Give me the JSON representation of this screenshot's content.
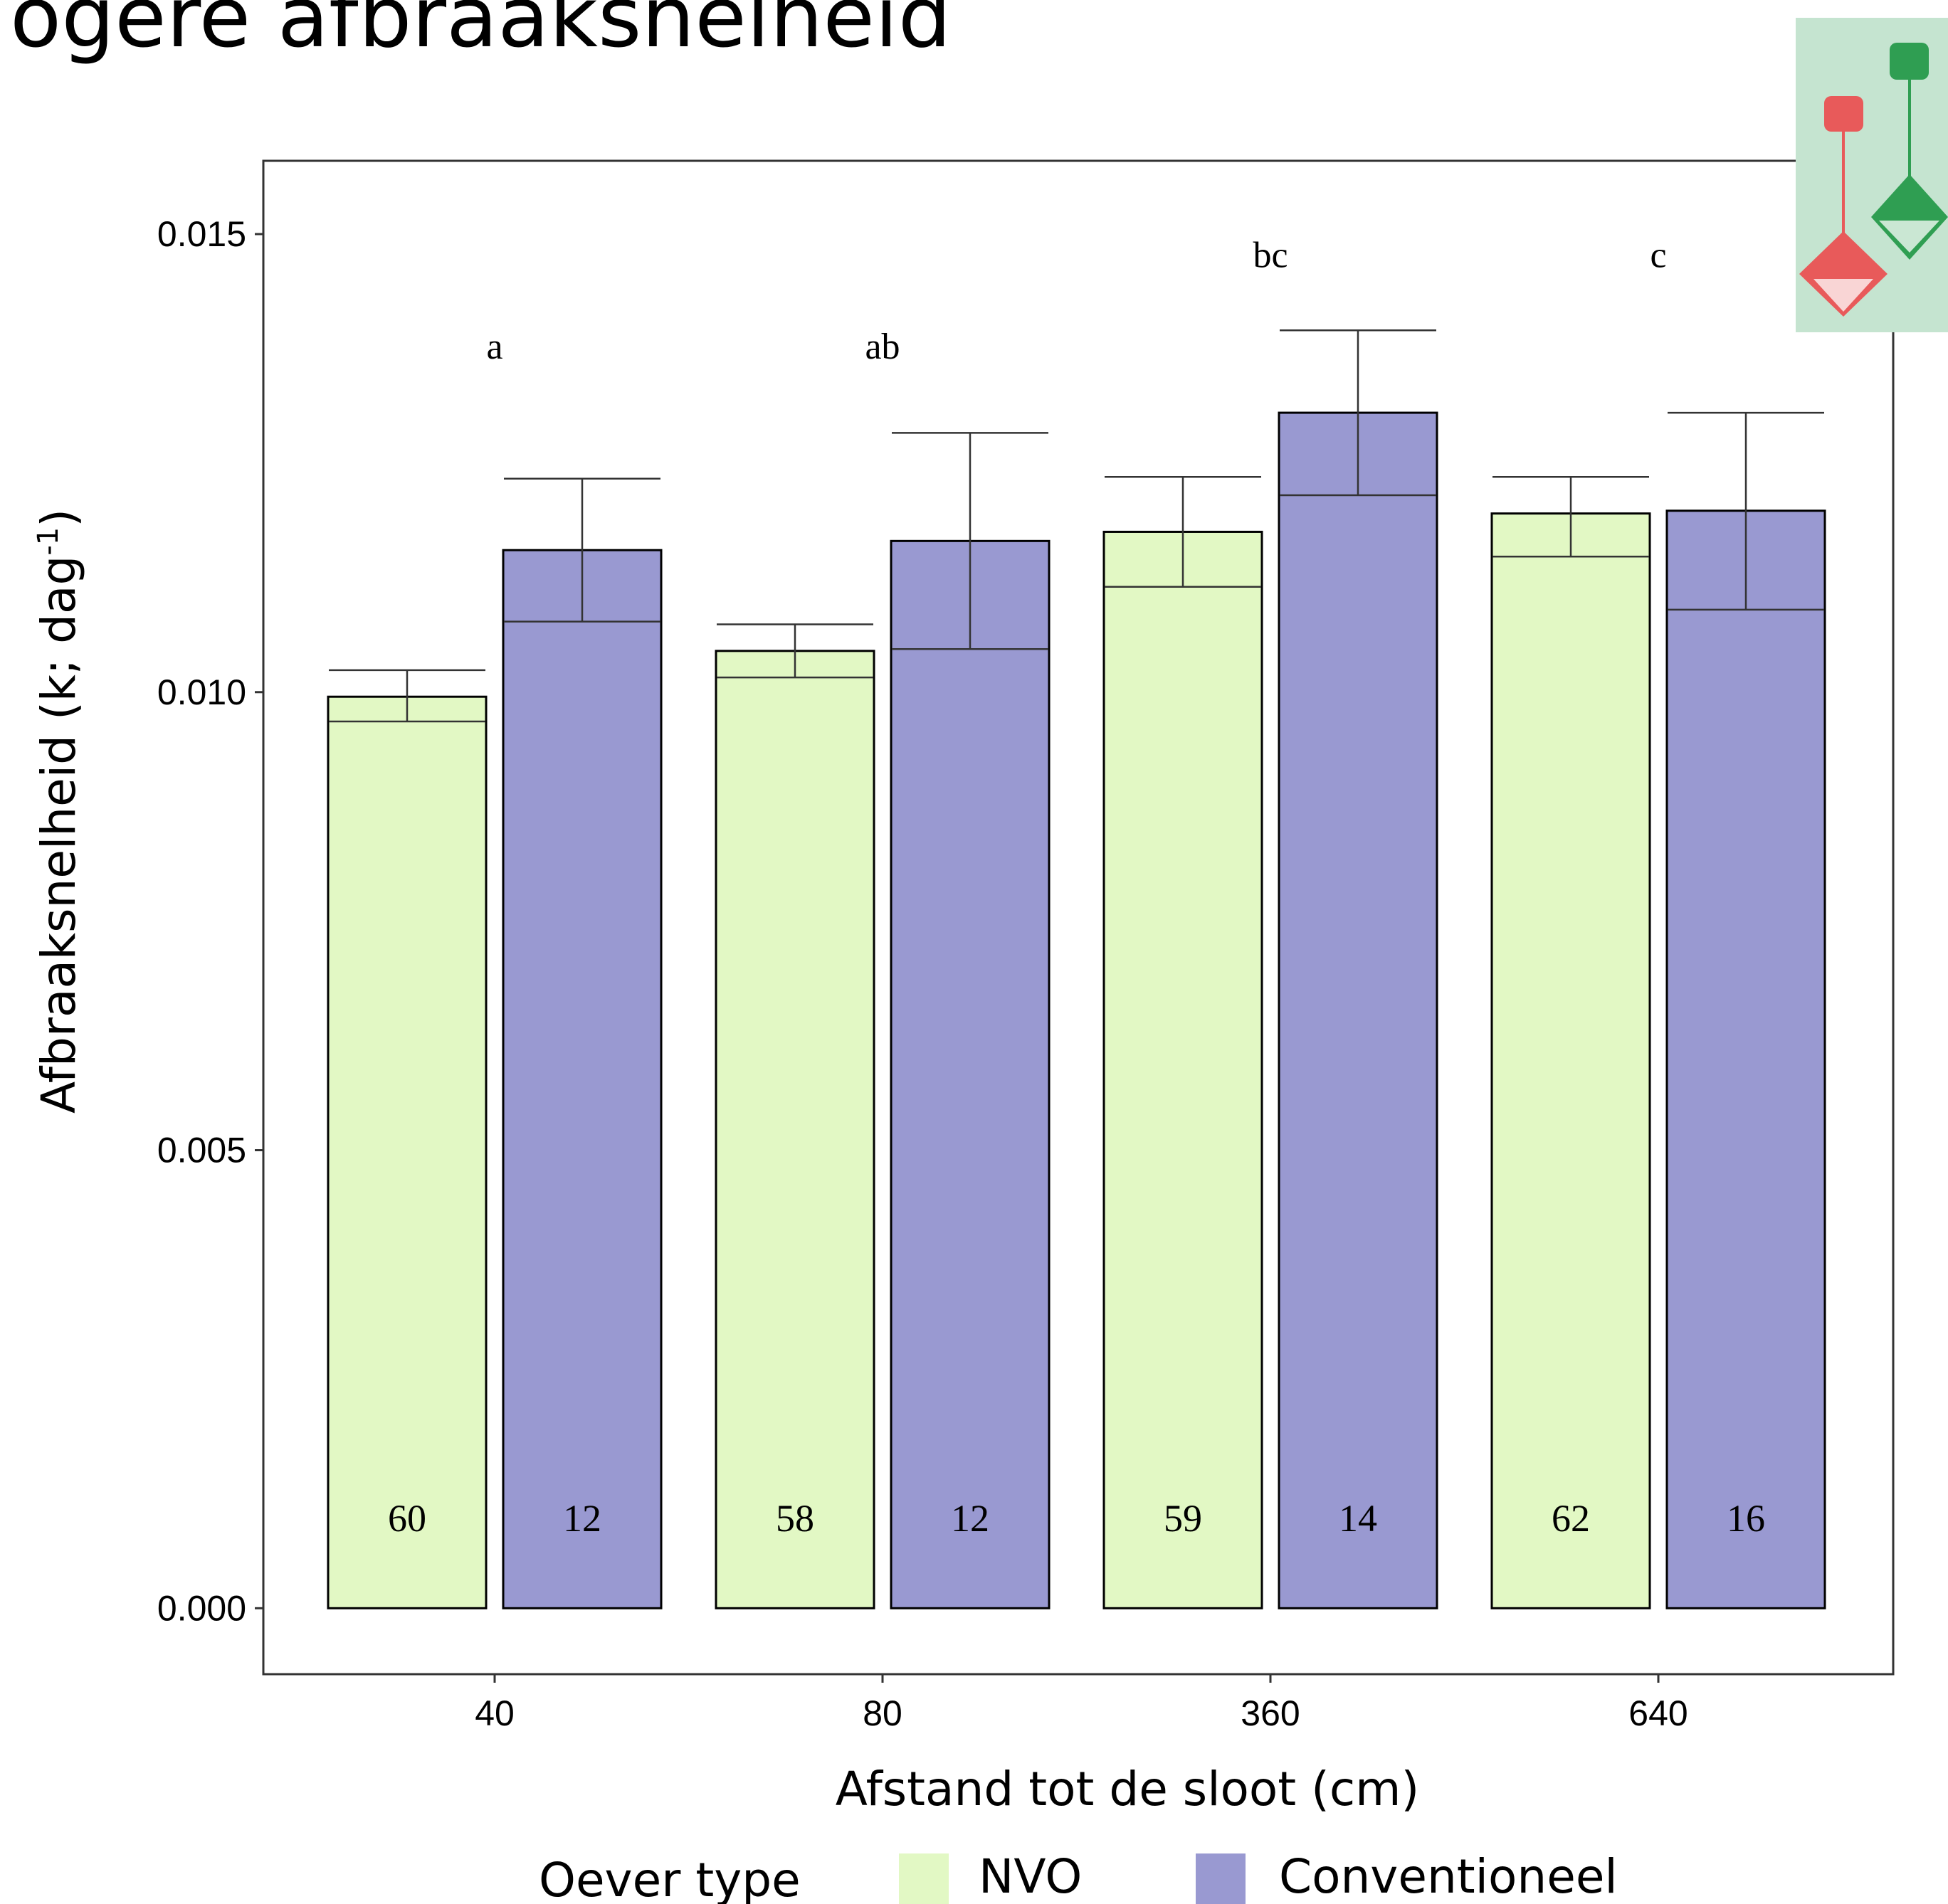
{
  "page": {
    "title": "ogere afbraaksnelheid"
  },
  "colors": {
    "NVO": "#e2f8c4",
    "Conventioneel": "#9999d1",
    "frame": "#000000"
  },
  "logo": {
    "icon": "decomposition-bag-icon",
    "background": "#c5e4d0",
    "left_color": "#e85a5a",
    "right_color": "#2f9e52"
  },
  "chart_data": {
    "type": "bar",
    "title": "",
    "xlabel": "Afstand tot de sloot (cm)",
    "ylabel_main": "Afbraaksnelheid (k; dag",
    "ylabel_sup": "-1",
    "ylabel_end": ")",
    "ylim": [
      -0.00072,
      0.0158
    ],
    "yticks": [
      0.0,
      0.005,
      0.01,
      0.015
    ],
    "ytick_labels": [
      "0.000",
      "0.005",
      "0.010",
      "0.015"
    ],
    "categories": [
      "40",
      "80",
      "360",
      "640"
    ],
    "series": [
      {
        "name": "NVO",
        "values": [
          0.00995,
          0.01045,
          0.01175,
          0.01195
        ],
        "err_low": [
          0.00968,
          0.01016,
          0.01115,
          0.01148
        ],
        "err_high": [
          0.01024,
          0.01074,
          0.01235,
          0.01235
        ],
        "n": [
          "60",
          "58",
          "59",
          "62"
        ]
      },
      {
        "name": "Conventioneel",
        "values": [
          0.01155,
          0.01165,
          0.01305,
          0.01198
        ],
        "err_low": [
          0.01077,
          0.01047,
          0.01215,
          0.0109
        ],
        "err_high": [
          0.01233,
          0.01283,
          0.01395,
          0.01305
        ],
        "n": [
          "12",
          "12",
          "14",
          "16"
        ]
      }
    ],
    "group_letters": [
      "a",
      "ab",
      "bc",
      "c"
    ],
    "letter_y": [
      0.01395,
      0.01395,
      0.01495,
      0.01495
    ],
    "legend": {
      "title": "Oever type",
      "entries": [
        "NVO",
        "Conventioneel"
      ],
      "position": "bottom"
    },
    "grid": false
  }
}
